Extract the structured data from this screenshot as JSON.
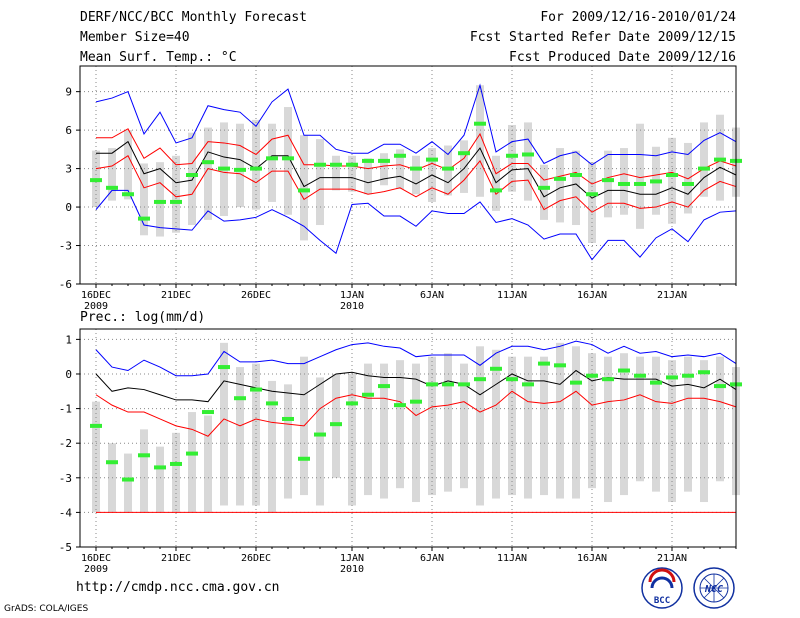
{
  "header": {
    "left": [
      "DERF/NCC/BCC Monthly Forecast",
      "Member Size=40",
      "Mean Surf. Temp.: °C"
    ],
    "right": [
      "For 2009/12/16-2010/01/24",
      "Fcst Started Refer Date 2009/12/15",
      "Fcst Produced Date 2009/12/16"
    ]
  },
  "footer": {
    "url": "http://cmdp.ncc.cma.gov.cn",
    "credit": "GrADS: COLA/IGES"
  },
  "logos": {
    "left": "BCC",
    "right": "NCC"
  },
  "colors": {
    "max_min": "#0000ff",
    "spread": "#ff0000",
    "mean": "#000000",
    "median": "#33ee33",
    "bar": "#d8d8d8"
  },
  "chart_data": [
    {
      "type": "line",
      "title": "Mean Surf. Temp.: °C",
      "xticks": [
        "16DEC",
        "21DEC",
        "26DEC",
        "1JAN",
        "6JAN",
        "11JAN",
        "16JAN",
        "21JAN"
      ],
      "xtick_index": [
        0,
        5,
        10,
        16,
        21,
        26,
        31,
        36
      ],
      "xsub": [
        {
          "index": 0,
          "text": "2009"
        },
        {
          "index": 16,
          "text": "2010"
        }
      ],
      "ylim": [
        -6,
        11
      ],
      "yticks": [
        -6,
        -3,
        0,
        3,
        6,
        9
      ],
      "series": [
        {
          "name": "max",
          "color": "#0000ff",
          "values": [
            8.2,
            8.5,
            9.0,
            5.7,
            7.4,
            5.0,
            5.4,
            7.9,
            7.6,
            7.4,
            6.3,
            8.2,
            9.2,
            5.6,
            5.6,
            4.5,
            4.2,
            4.2,
            4.9,
            4.9,
            4.2,
            5.1,
            4.1,
            5.6,
            9.5,
            4.3,
            5.1,
            5.3,
            3.4,
            4.0,
            4.3,
            3.3,
            4.1,
            4.1,
            4.1,
            4.0,
            4.3,
            4.1,
            5.2,
            5.8,
            5.1
          ]
        },
        {
          "name": "p75",
          "color": "#ff0000",
          "values": [
            5.4,
            5.4,
            6.1,
            3.8,
            4.6,
            3.3,
            3.4,
            5.1,
            5.0,
            4.8,
            4.1,
            5.3,
            5.6,
            3.3,
            3.3,
            3.2,
            3.2,
            3.0,
            3.2,
            3.3,
            2.9,
            3.4,
            2.9,
            3.8,
            5.7,
            2.6,
            3.4,
            3.4,
            2.1,
            2.4,
            2.7,
            1.8,
            2.3,
            2.6,
            2.3,
            2.5,
            2.7,
            2.2,
            3.0,
            3.6,
            3.2
          ]
        },
        {
          "name": "mean",
          "color": "#000000",
          "values": [
            4.2,
            4.2,
            5.1,
            2.6,
            3.0,
            1.9,
            2.1,
            4.3,
            3.9,
            3.7,
            3.0,
            4.0,
            4.0,
            1.6,
            2.3,
            2.3,
            2.3,
            1.9,
            2.2,
            2.4,
            1.8,
            2.5,
            1.9,
            3.0,
            4.6,
            1.9,
            2.9,
            3.0,
            0.8,
            1.5,
            1.8,
            0.7,
            1.3,
            1.3,
            1.0,
            1.0,
            1.5,
            1.0,
            2.3,
            3.1,
            2.5
          ]
        },
        {
          "name": "p25",
          "color": "#ff0000",
          "values": [
            3.0,
            3.2,
            4.0,
            1.5,
            1.9,
            0.8,
            1.0,
            3.0,
            2.7,
            2.6,
            1.9,
            2.8,
            2.8,
            0.6,
            1.4,
            1.4,
            1.4,
            1.0,
            1.2,
            1.5,
            0.8,
            1.5,
            1.0,
            2.1,
            3.6,
            1.0,
            2.0,
            2.1,
            -0.2,
            0.5,
            0.8,
            -0.4,
            0.3,
            0.3,
            -0.1,
            0.0,
            0.4,
            0.0,
            1.3,
            2.0,
            1.6
          ]
        },
        {
          "name": "min",
          "color": "#0000ff",
          "values": [
            -0.2,
            1.3,
            1.3,
            -1.4,
            -1.6,
            -1.7,
            -1.8,
            -0.3,
            -1.1,
            -1.0,
            -0.8,
            -0.2,
            -0.8,
            -1.5,
            -2.6,
            -3.6,
            0.2,
            0.3,
            -0.7,
            -0.7,
            -1.5,
            -0.3,
            -0.5,
            -0.5,
            0.4,
            -1.2,
            -0.9,
            -1.4,
            -2.5,
            -2.1,
            -2.1,
            -4.1,
            -2.6,
            -2.6,
            -3.9,
            -2.4,
            -1.7,
            -2.7,
            -1.0,
            -0.4,
            -0.3
          ]
        }
      ],
      "median": [
        2.1,
        1.5,
        1.0,
        -0.9,
        0.4,
        0.4,
        2.5,
        3.5,
        3.0,
        2.9,
        3.0,
        3.8,
        3.8,
        1.3,
        3.3,
        3.3,
        3.3,
        3.6,
        3.6,
        4.0,
        3.0,
        3.7,
        3.0,
        4.2,
        6.5,
        1.3,
        4.0,
        4.1,
        1.5,
        2.2,
        2.5,
        1.0,
        2.1,
        1.8,
        1.8,
        2.0,
        2.5,
        1.8,
        3.0,
        3.7,
        3.6
      ],
      "bars": [
        [
          0.0,
          4.4
        ],
        [
          0.5,
          4.6
        ],
        [
          0.6,
          6.0
        ],
        [
          -2.2,
          3.4
        ],
        [
          -2.3,
          3.5
        ],
        [
          -2.0,
          4.0
        ],
        [
          -1.4,
          5.8
        ],
        [
          -1.0,
          6.2
        ],
        [
          -0.7,
          6.6
        ],
        [
          0.0,
          6.5
        ],
        [
          -0.2,
          6.8
        ],
        [
          0.4,
          6.5
        ],
        [
          -0.6,
          7.8
        ],
        [
          -2.6,
          5.6
        ],
        [
          -1.4,
          5.3
        ],
        [
          1.3,
          4.0
        ],
        [
          1.2,
          4.0
        ],
        [
          1.0,
          3.8
        ],
        [
          1.7,
          4.2
        ],
        [
          1.4,
          4.5
        ],
        [
          1.0,
          4.0
        ],
        [
          0.4,
          4.6
        ],
        [
          0.9,
          4.8
        ],
        [
          1.1,
          5.2
        ],
        [
          0.8,
          9.5
        ],
        [
          -0.3,
          4.0
        ],
        [
          1.2,
          6.4
        ],
        [
          0.5,
          6.6
        ],
        [
          -1.0,
          3.3
        ],
        [
          -1.2,
          4.6
        ],
        [
          -1.4,
          4.4
        ],
        [
          -2.8,
          3.5
        ],
        [
          -0.8,
          4.4
        ],
        [
          -0.6,
          4.6
        ],
        [
          -1.7,
          6.5
        ],
        [
          -0.6,
          4.7
        ],
        [
          -1.3,
          5.4
        ],
        [
          -0.5,
          5.0
        ],
        [
          0.8,
          6.6
        ],
        [
          0.5,
          7.2
        ],
        [
          0.8,
          6.2
        ]
      ]
    },
    {
      "type": "line",
      "title": "Prec.: log(mm/d)",
      "xticks": [
        "16DEC",
        "21DEC",
        "26DEC",
        "1JAN",
        "6JAN",
        "11JAN",
        "16JAN",
        "21JAN"
      ],
      "xtick_index": [
        0,
        5,
        10,
        16,
        21,
        26,
        31,
        36
      ],
      "xsub": [
        {
          "index": 0,
          "text": "2009"
        },
        {
          "index": 16,
          "text": "2010"
        }
      ],
      "ylim": [
        -5,
        1.3
      ],
      "yticks": [
        -5,
        -4,
        -3,
        -2,
        -1,
        0,
        1
      ],
      "series": [
        {
          "name": "max",
          "color": "#0000ff",
          "values": [
            0.7,
            0.2,
            0.1,
            0.4,
            0.2,
            -0.05,
            -0.05,
            0.0,
            0.65,
            0.35,
            0.35,
            0.4,
            0.3,
            0.3,
            0.5,
            0.7,
            0.85,
            0.9,
            0.8,
            0.75,
            0.5,
            0.55,
            0.55,
            0.55,
            0.25,
            0.6,
            0.8,
            0.8,
            0.7,
            0.8,
            0.95,
            0.85,
            0.6,
            0.8,
            0.6,
            0.65,
            0.5,
            0.55,
            0.5,
            0.6,
            0.3
          ]
        },
        {
          "name": "mean",
          "color": "#000000",
          "values": [
            0.0,
            -0.5,
            -0.4,
            -0.45,
            -0.6,
            -0.75,
            -0.75,
            -0.8,
            -0.2,
            -0.3,
            -0.4,
            -0.5,
            -0.55,
            -0.6,
            -0.3,
            0.0,
            0.05,
            -0.05,
            -0.1,
            -0.1,
            -0.15,
            -0.35,
            -0.2,
            -0.3,
            -0.6,
            -0.3,
            0.0,
            -0.2,
            -0.2,
            -0.3,
            0.1,
            -0.2,
            -0.1,
            -0.15,
            -0.15,
            -0.15,
            -0.35,
            -0.3,
            -0.4,
            -0.15,
            -0.45
          ]
        },
        {
          "name": "spread",
          "color": "#ff0000",
          "values": [
            -0.6,
            -0.9,
            -1.1,
            -1.1,
            -1.3,
            -1.5,
            -1.6,
            -1.8,
            -1.3,
            -1.5,
            -1.3,
            -1.4,
            -1.45,
            -1.5,
            -1.0,
            -0.7,
            -0.6,
            -0.7,
            -0.7,
            -0.8,
            -1.2,
            -0.95,
            -0.9,
            -0.8,
            -1.1,
            -0.9,
            -0.5,
            -0.8,
            -0.85,
            -0.8,
            -0.5,
            -0.9,
            -0.8,
            -0.75,
            -0.6,
            -0.8,
            -0.85,
            -0.7,
            -0.7,
            -0.8,
            -0.95
          ]
        },
        {
          "name": "floor",
          "color": "#ff0000",
          "values": [
            -4.0,
            -4.0,
            -4.0,
            -4.0,
            -4.0,
            -4.0,
            -4.0,
            -4.0,
            -4.0,
            -4.0,
            -4.0,
            -4.0,
            -4.0,
            -4.0,
            -4.0,
            -4.0,
            -4.0,
            -4.0,
            -4.0,
            -4.0,
            -4.0,
            -4.0,
            -4.0,
            -4.0,
            -4.0,
            -4.0,
            -4.0,
            -4.0,
            -4.0,
            -4.0,
            -4.0,
            -4.0,
            -4.0,
            -4.0,
            -4.0,
            -4.0,
            -4.0,
            -4.0,
            -4.0,
            -4.0,
            -4.0
          ]
        }
      ],
      "median": [
        -1.5,
        -2.55,
        -3.05,
        -2.35,
        -2.7,
        -2.6,
        -2.3,
        -1.1,
        0.2,
        -0.7,
        -0.45,
        -0.85,
        -1.3,
        -2.45,
        -1.75,
        -1.45,
        -0.85,
        -0.6,
        -0.35,
        -0.9,
        -0.8,
        -0.3,
        -0.3,
        -0.3,
        -0.15,
        0.15,
        -0.15,
        -0.3,
        0.3,
        0.25,
        -0.25,
        -0.05,
        -0.15,
        0.1,
        -0.05,
        -0.25,
        -0.1,
        -0.05,
        0.05,
        -0.35,
        -0.3
      ],
      "bars": [
        [
          -4.0,
          -0.8
        ],
        [
          -4.0,
          -2.0
        ],
        [
          -4.0,
          -2.3
        ],
        [
          -4.0,
          -1.6
        ],
        [
          -4.0,
          -2.1
        ],
        [
          -4.0,
          -1.7
        ],
        [
          -4.0,
          -1.1
        ],
        [
          -4.0,
          -1.2
        ],
        [
          -3.8,
          0.9
        ],
        [
          -3.8,
          0.2
        ],
        [
          -3.8,
          0.3
        ],
        [
          -4.0,
          -0.2
        ],
        [
          -3.6,
          -0.3
        ],
        [
          -3.5,
          0.5
        ],
        [
          -3.8,
          -0.1
        ],
        [
          -3.0,
          0.0
        ],
        [
          -3.8,
          0.0
        ],
        [
          -3.5,
          0.3
        ],
        [
          -3.6,
          0.3
        ],
        [
          -3.3,
          0.4
        ],
        [
          -3.7,
          0.3
        ],
        [
          -3.5,
          0.5
        ],
        [
          -3.4,
          0.6
        ],
        [
          -3.3,
          0.3
        ],
        [
          -3.8,
          0.8
        ],
        [
          -3.6,
          0.7
        ],
        [
          -3.5,
          0.5
        ],
        [
          -3.6,
          0.5
        ],
        [
          -3.5,
          0.5
        ],
        [
          -3.6,
          0.9
        ],
        [
          -3.6,
          0.8
        ],
        [
          -3.3,
          0.6
        ],
        [
          -3.7,
          0.5
        ],
        [
          -3.5,
          0.6
        ],
        [
          -3.1,
          0.5
        ],
        [
          -3.4,
          0.5
        ],
        [
          -3.7,
          0.4
        ],
        [
          -3.4,
          0.5
        ],
        [
          -3.7,
          0.4
        ],
        [
          -3.1,
          0.5
        ],
        [
          -3.5,
          0.2
        ]
      ]
    }
  ]
}
